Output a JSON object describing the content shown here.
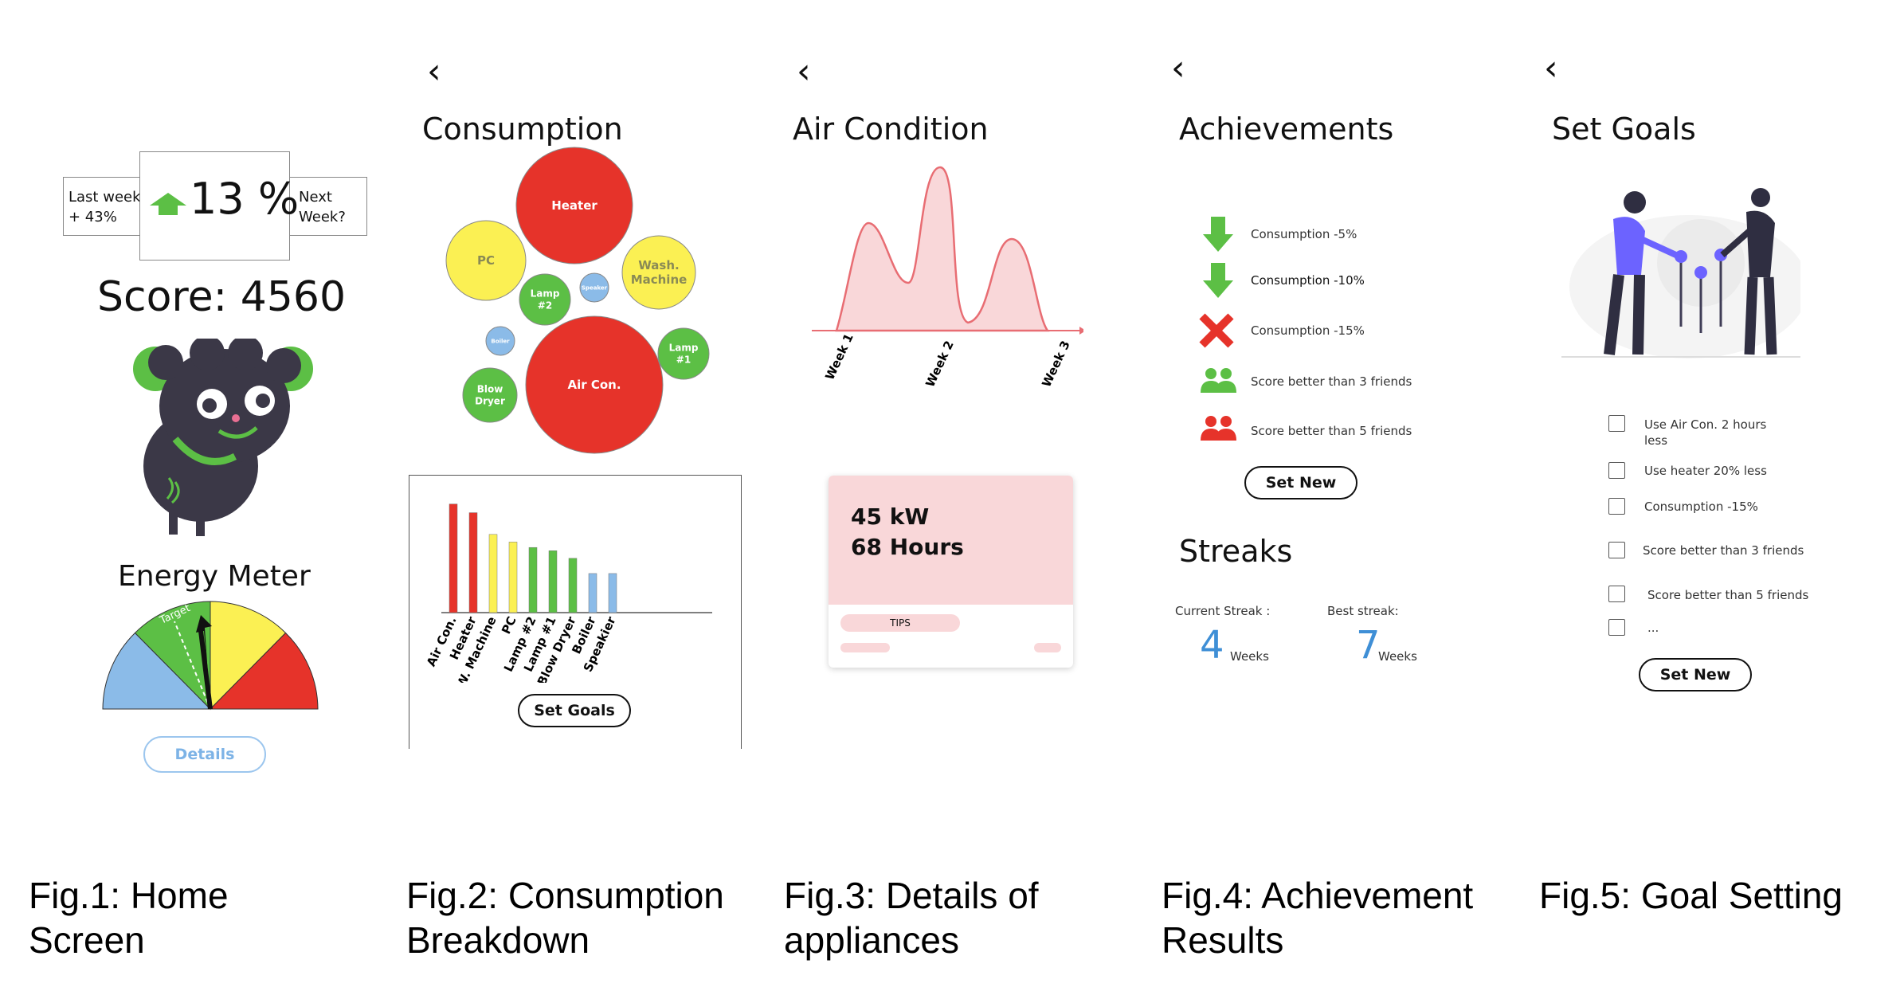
{
  "home": {
    "last_week": "Last week\n+ 43%",
    "percent": "13 %",
    "next_week": "Next\nWeek?",
    "score": "Score: 4560",
    "meter_title": "Energy Meter",
    "target_label": "Target",
    "details": "Details",
    "colors": {
      "blue": "#8bbbe8",
      "green": "#5cbf45",
      "yellow": "#fbf053",
      "red": "#e6332a",
      "mascot": "#3b3847"
    }
  },
  "consumption": {
    "title": "Consumption",
    "bubbles": [
      {
        "label": "Heater",
        "color": "#e6332a"
      },
      {
        "label": "PC",
        "color": "#fbf053"
      },
      {
        "label": "Wash.\nMachine",
        "color": "#fbf053"
      },
      {
        "label": "Lamp\n#2",
        "color": "#5cbf45"
      },
      {
        "label": "Speaker",
        "color": "#8bbbe8"
      },
      {
        "label": "Boiler",
        "color": "#8bbbe8"
      },
      {
        "label": "Air Con.",
        "color": "#e6332a"
      },
      {
        "label": "Lamp\n#1",
        "color": "#5cbf45"
      },
      {
        "label": "Blow\nDryer",
        "color": "#5cbf45"
      }
    ],
    "set_goals": "Set Goals"
  },
  "chart_data": {
    "type": "bar",
    "categories": [
      "Air Con.",
      "Heater",
      "W. Machine",
      "PC",
      "Lamp #2",
      "Lamp #1",
      "Blow Dryer",
      "Boiler",
      "Speakier"
    ],
    "values": [
      100,
      92,
      72,
      65,
      60,
      57,
      50,
      36,
      36
    ],
    "colors": [
      "#e6332a",
      "#e6332a",
      "#fbf053",
      "#fbf053",
      "#5cbf45",
      "#5cbf45",
      "#5cbf45",
      "#8bbbe8",
      "#8bbbe8"
    ],
    "ylim": [
      0,
      110
    ],
    "title": "",
    "xlabel": "",
    "ylabel": ""
  },
  "aircon": {
    "title": "Air Condition",
    "weeks": [
      "Week 1",
      "Week 2",
      "Week 3"
    ],
    "line1": "45 kW",
    "line2": "68 Hours",
    "tips": "TIPS"
  },
  "achievements": {
    "title": "Achievements",
    "items": [
      {
        "icon": "green-down-arrow-icon",
        "label": "Consumption -5%"
      },
      {
        "icon": "green-down-arrow-icon",
        "label": "Consumption -10%"
      },
      {
        "icon": "red-cross-icon",
        "label": "Consumption -15%"
      },
      {
        "icon": "green-people-icon",
        "label": "Score better than 3 friends"
      },
      {
        "icon": "red-people-icon",
        "label": "Score better than 5 friends"
      }
    ],
    "set_new": "Set New",
    "streaks_title": "Streaks",
    "current_label": "Current Streak :",
    "current_value": "4",
    "current_unit": "Weeks",
    "best_label": "Best streak:",
    "best_value": "7",
    "best_unit": "Weeks"
  },
  "goals": {
    "title": "Set Goals",
    "items": [
      "Use Air Con. 2 hours\nless",
      "Use heater 20% less",
      "Consumption -15%",
      "Score better than 3 friends",
      "Score better than 5 friends",
      "..."
    ],
    "set_new": "Set New"
  },
  "captions": [
    "Fig.1: Home\nScreen",
    "Fig.2: Consumption\nBreakdown",
    "Fig.3: Details of\nappliances",
    "Fig.4: Achievement\nResults",
    "Fig.5:  Goal Setting"
  ]
}
